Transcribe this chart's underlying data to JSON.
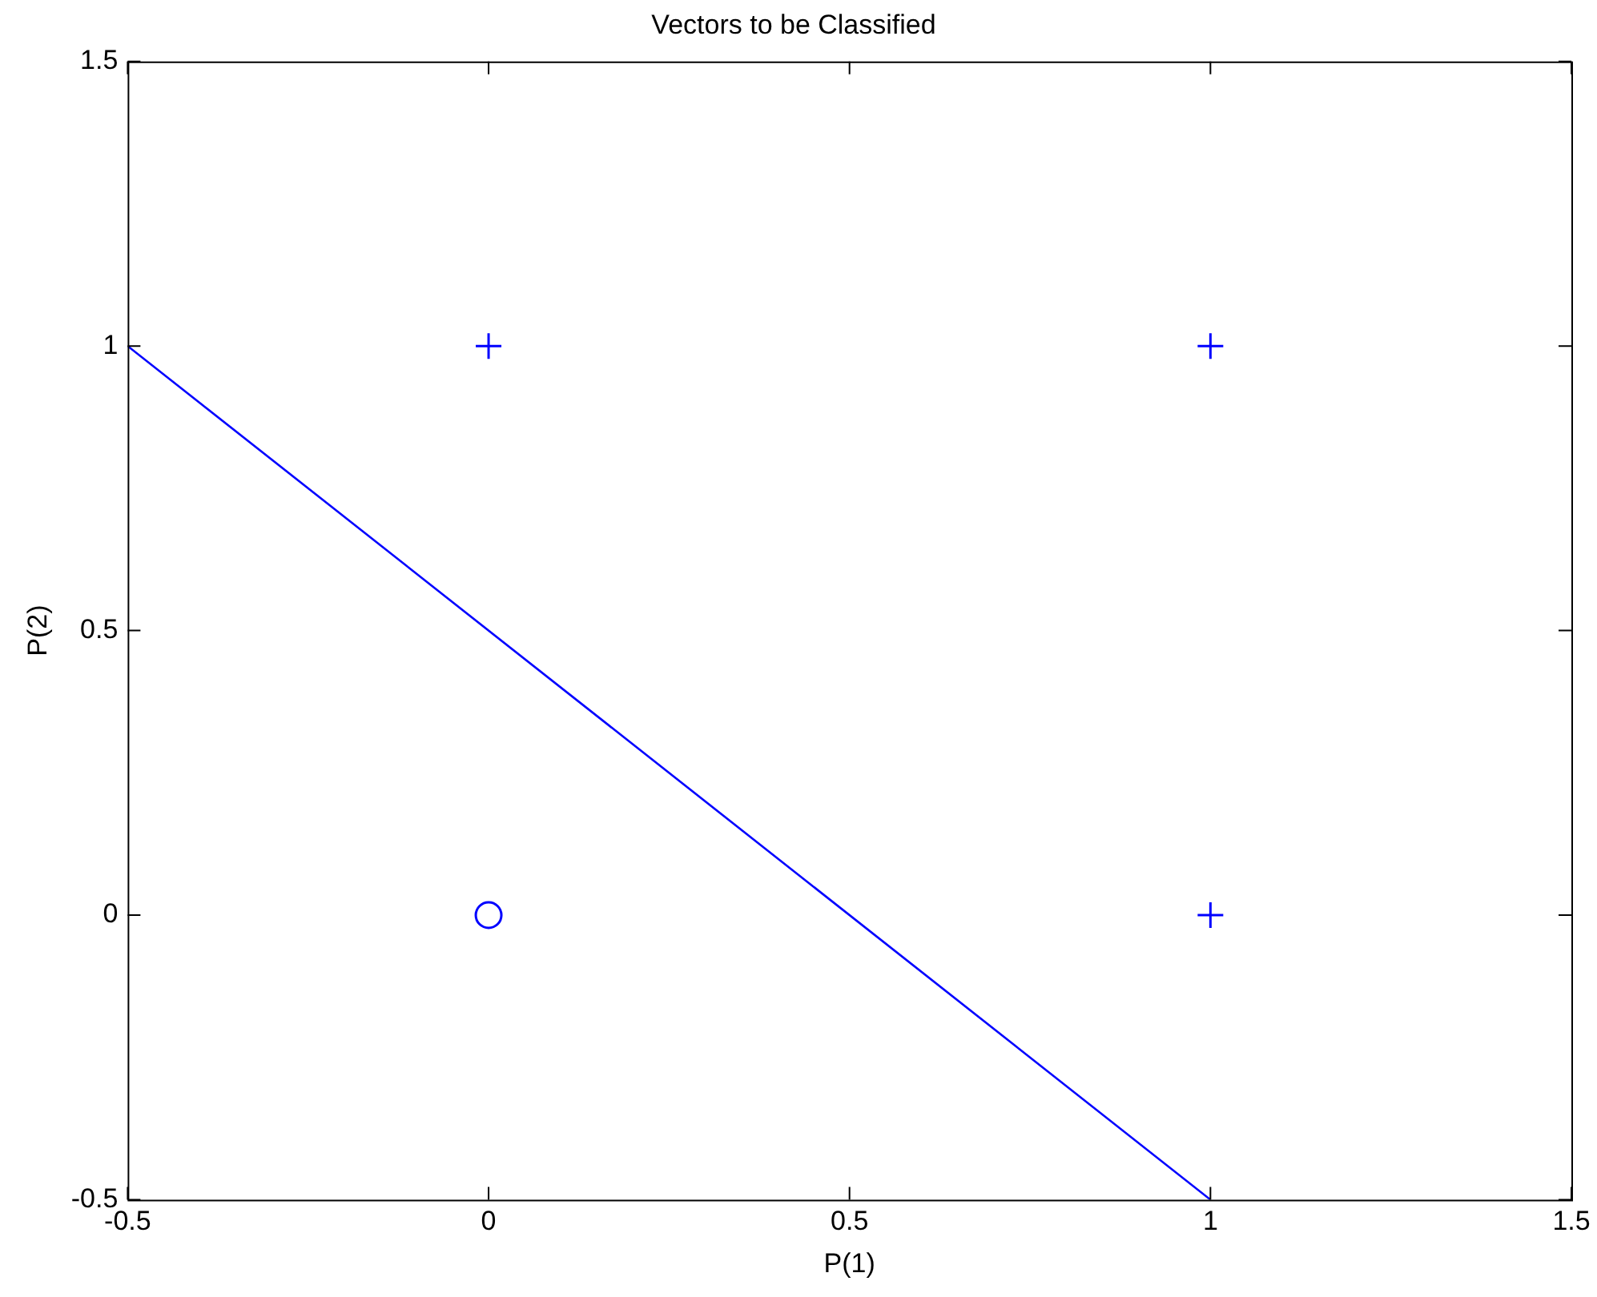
{
  "chart_data": {
    "type": "scatter",
    "title": "Vectors to be Classified",
    "xlabel": "P(1)",
    "ylabel": "P(2)",
    "xlim": [
      -0.5,
      1.5
    ],
    "ylim": [
      -0.5,
      1.5
    ],
    "xticks": [
      -0.5,
      0,
      0.5,
      1,
      1.5
    ],
    "yticks": [
      -0.5,
      0,
      0.5,
      1,
      1.5
    ],
    "grid": false,
    "legend": false,
    "series": [
      {
        "type": "scatter",
        "marker": "cross",
        "color": "#0000ff",
        "x": [
          0,
          1,
          1
        ],
        "values": [
          1,
          1,
          0
        ]
      },
      {
        "type": "scatter",
        "marker": "circle",
        "color": "#0000ff",
        "x": [
          0
        ],
        "values": [
          0
        ]
      },
      {
        "type": "line",
        "marker": "none",
        "line_style": "solid",
        "color": "#0000ff",
        "x": [
          -0.5,
          1
        ],
        "values": [
          1,
          -0.5
        ]
      }
    ]
  }
}
